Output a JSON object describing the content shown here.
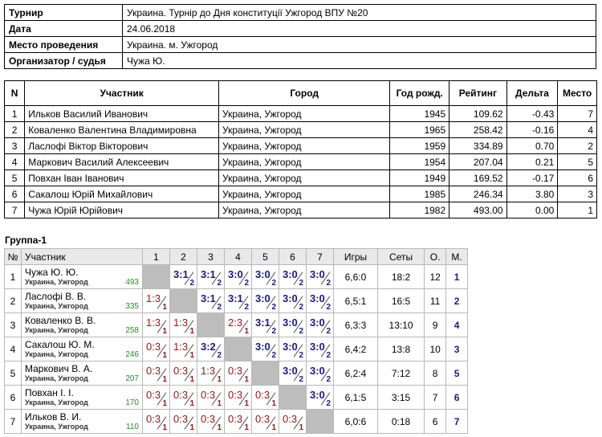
{
  "info": [
    {
      "label": "Турнир",
      "value": "Украина. Турнір до Дня конституції Ужгород ВПУ №20"
    },
    {
      "label": "Дата",
      "value": "24.06.2018"
    },
    {
      "label": "Место проведения",
      "value": "Украина. м. Ужгород"
    },
    {
      "label": "Организатор / судья",
      "value": "Чужа Ю."
    }
  ],
  "participants": {
    "headers": [
      "N",
      "Участник",
      "Город",
      "Год рожд.",
      "Рейтинг",
      "Дельта",
      "Место"
    ],
    "rows": [
      {
        "n": "1",
        "name": "Ильков Василий Иванович",
        "city": "Украина, Ужгород",
        "year": "1945",
        "rating": "109.62",
        "delta": "-0.43",
        "place": "7"
      },
      {
        "n": "2",
        "name": "Коваленко Валентина Владимировна",
        "city": "Украина, Ужгород",
        "year": "1965",
        "rating": "258.42",
        "delta": "-0.16",
        "place": "4"
      },
      {
        "n": "3",
        "name": "Ласлофі Віктор Вікторович",
        "city": "Украина, Ужгород",
        "year": "1959",
        "rating": "334.89",
        "delta": "0.70",
        "place": "2"
      },
      {
        "n": "4",
        "name": "Маркович Василий Алексеевич",
        "city": "Украина, Ужгород",
        "year": "1954",
        "rating": "207.04",
        "delta": "0.21",
        "place": "5"
      },
      {
        "n": "5",
        "name": "Повхан Іван Іванович",
        "city": "Украина, Ужгород",
        "year": "1949",
        "rating": "169.52",
        "delta": "-0.17",
        "place": "6"
      },
      {
        "n": "6",
        "name": "Сакалош Юрій Михайлович",
        "city": "Украина, Ужгород",
        "year": "1985",
        "rating": "246.34",
        "delta": "3.80",
        "place": "3"
      },
      {
        "n": "7",
        "name": "Чужа Юрій Юрійович",
        "city": "Украина, Ужгород",
        "year": "1982",
        "rating": "493.00",
        "delta": "0.00",
        "place": "1"
      }
    ]
  },
  "group": {
    "title": "Группа-1",
    "headers": [
      "№",
      "Участник",
      "1",
      "2",
      "3",
      "4",
      "5",
      "6",
      "7",
      "Игры",
      "Сеты",
      "О.",
      "М."
    ],
    "rows": [
      {
        "n": "1",
        "name": "Чужа Ю. Ю.",
        "city": "Украина, Ужгород",
        "rating": "493",
        "cells": [
          null,
          "3:1|2|w",
          "3:1|2|w",
          "3:0|2|w",
          "3:0|2|w",
          "3:0|2|w",
          "3:0|2|w"
        ],
        "games": "6,6:0",
        "sets": "18:2",
        "points": "12",
        "place": "1"
      },
      {
        "n": "2",
        "name": "Ласлофі В. В.",
        "city": "Украина, Ужгород",
        "rating": "335",
        "cells": [
          "1:3|1|l",
          null,
          "3:1|2|w",
          "3:1|2|w",
          "3:0|2|w",
          "3:0|2|w",
          "3:0|2|w"
        ],
        "games": "6,5:1",
        "sets": "16:5",
        "points": "11",
        "place": "2"
      },
      {
        "n": "3",
        "name": "Коваленко В. В.",
        "city": "Украина, Ужгород",
        "rating": "258",
        "cells": [
          "1:3|1|l",
          "1:3|1|l",
          null,
          "2:3|1|l",
          "3:1|2|w",
          "3:0|2|w",
          "3:0|2|w"
        ],
        "games": "6,3:3",
        "sets": "13:10",
        "points": "9",
        "place": "4"
      },
      {
        "n": "4",
        "name": "Сакалош Ю. М.",
        "city": "Украина, Ужгород",
        "rating": "246",
        "cells": [
          "0:3|1|l",
          "1:3|1|l",
          "3:2|2|w",
          null,
          "3:0|2|w",
          "3:0|2|w",
          "3:0|2|w"
        ],
        "games": "6,4:2",
        "sets": "13:8",
        "points": "10",
        "place": "3"
      },
      {
        "n": "5",
        "name": "Маркович В. А.",
        "city": "Украина, Ужгород",
        "rating": "207",
        "cells": [
          "0:3|1|l",
          "0:3|1|l",
          "1:3|1|l",
          "0:3|1|l",
          null,
          "3:0|2|w",
          "3:0|2|w"
        ],
        "games": "6,2:4",
        "sets": "7:12",
        "points": "8",
        "place": "5"
      },
      {
        "n": "6",
        "name": "Повхан І. І.",
        "city": "Украина, Ужгород",
        "rating": "170",
        "cells": [
          "0:3|1|l",
          "0:3|1|l",
          "0:3|1|l",
          "0:3|1|l",
          "0:3|1|l",
          null,
          "3:0|2|w"
        ],
        "games": "6,1:5",
        "sets": "3:15",
        "points": "7",
        "place": "6"
      },
      {
        "n": "7",
        "name": "Ильков В. И.",
        "city": "Украина, Ужгород",
        "rating": "110",
        "cells": [
          "0:3|1|l",
          "0:3|1|l",
          "0:3|1|l",
          "0:3|1|l",
          "0:3|1|l",
          "0:3|1|l",
          null
        ],
        "games": "6,0:6",
        "sets": "0:18",
        "points": "6",
        "place": "7"
      }
    ]
  }
}
